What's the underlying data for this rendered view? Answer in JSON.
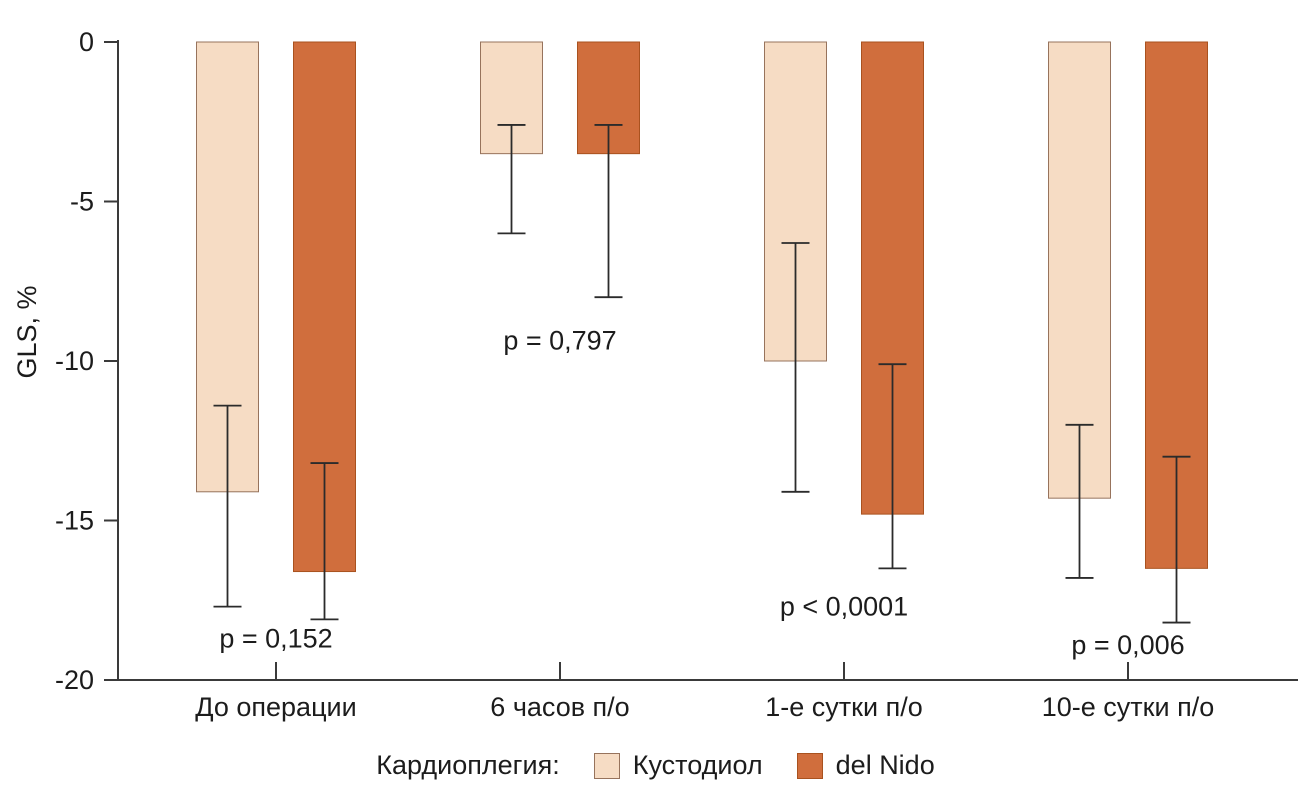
{
  "chart_data": {
    "type": "bar",
    "title": "",
    "ylabel": "GLS, %",
    "ylim": [
      -20,
      0
    ],
    "yticks": [
      0,
      -5,
      -10,
      -15,
      -20
    ],
    "grid": false,
    "legend_position": "bottom",
    "categories": [
      "До операции",
      "6 часов п/о",
      "1-е сутки п/о",
      "10-е сутки п/о"
    ],
    "series": [
      {
        "name": "Кустодиол",
        "color": "#f6dcc4",
        "border_color": "#97735c",
        "values": [
          -14.1,
          -3.5,
          -10.0,
          -14.3
        ],
        "error_top": [
          -11.4,
          -2.6,
          -6.3,
          -12.0
        ],
        "error_bottom": [
          -17.7,
          -6.0,
          -14.1,
          -16.8
        ]
      },
      {
        "name": "del Nido",
        "color": "#d06e3d",
        "border_color": "#a9521f",
        "values": [
          -16.6,
          -3.5,
          -14.8,
          -16.5
        ],
        "error_top": [
          -13.2,
          -2.6,
          -10.1,
          -13.0
        ],
        "error_bottom": [
          -18.1,
          -8.0,
          -16.5,
          -18.2
        ]
      }
    ],
    "annotations": [
      {
        "label": "p = 0,152",
        "category_index": 0,
        "y": -18.7
      },
      {
        "label": "p = 0,797",
        "category_index": 1,
        "y": -9.35
      },
      {
        "label": "p < 0,0001",
        "category_index": 2,
        "y": -17.7
      },
      {
        "label": "p = 0,006",
        "category_index": 3,
        "y": -18.9
      }
    ],
    "legend": {
      "title": "Кардиоплегия:"
    },
    "colors": {
      "axis": "#3a3a3a",
      "error_bar": "#2b2b2b",
      "text": "#1c1c1c",
      "background": "#ffffff"
    }
  }
}
